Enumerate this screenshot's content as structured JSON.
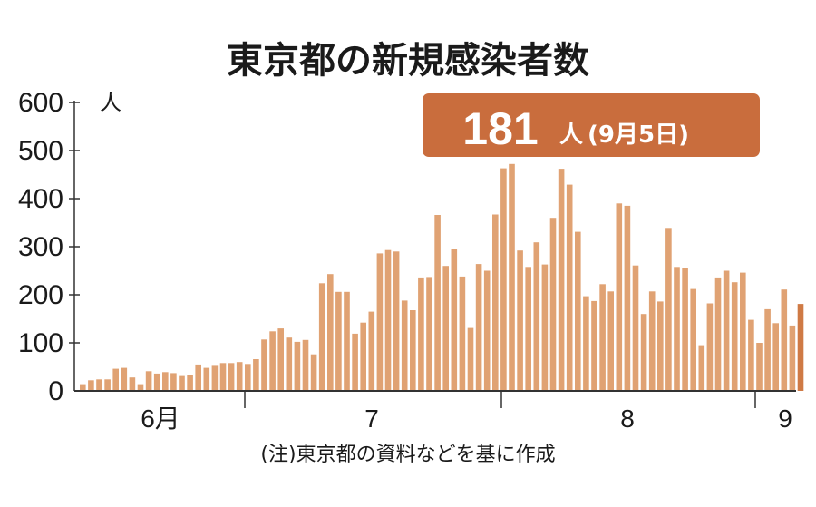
{
  "chart_data": {
    "type": "bar",
    "title": "東京都の新規感染者数",
    "unit": "人",
    "ylim": [
      0,
      600
    ],
    "yticks": [
      "600",
      "500",
      "400",
      "300",
      "200",
      "100",
      "0"
    ],
    "month_labels": [
      "6月",
      "7",
      "8",
      "9"
    ],
    "highlight": {
      "value": "181",
      "unit": "人",
      "date": "(9月5日)"
    },
    "note": "(注)東京都の資料などを基に作成",
    "bar_color": "#e0a273",
    "highlight_color": "#c96d3d",
    "last_bar_color": "#cf7a45",
    "values": [
      14,
      22,
      24,
      24,
      46,
      48,
      28,
      14,
      41,
      36,
      39,
      37,
      31,
      33,
      55,
      48,
      54,
      58,
      58,
      60,
      56,
      66,
      107,
      124,
      130,
      111,
      102,
      106,
      76,
      224,
      243,
      206,
      206,
      119,
      142,
      165,
      286,
      293,
      290,
      188,
      168,
      236,
      237,
      366,
      260,
      295,
      238,
      131,
      264,
      250,
      367,
      463,
      472,
      292,
      258,
      309,
      263,
      360,
      462,
      429,
      331,
      197,
      187,
      222,
      207,
      390,
      385,
      261,
      160,
      207,
      186,
      339,
      258,
      256,
      212,
      95,
      182,
      236,
      250,
      226,
      246,
      148,
      100,
      170,
      141,
      211,
      136,
      181
    ]
  }
}
